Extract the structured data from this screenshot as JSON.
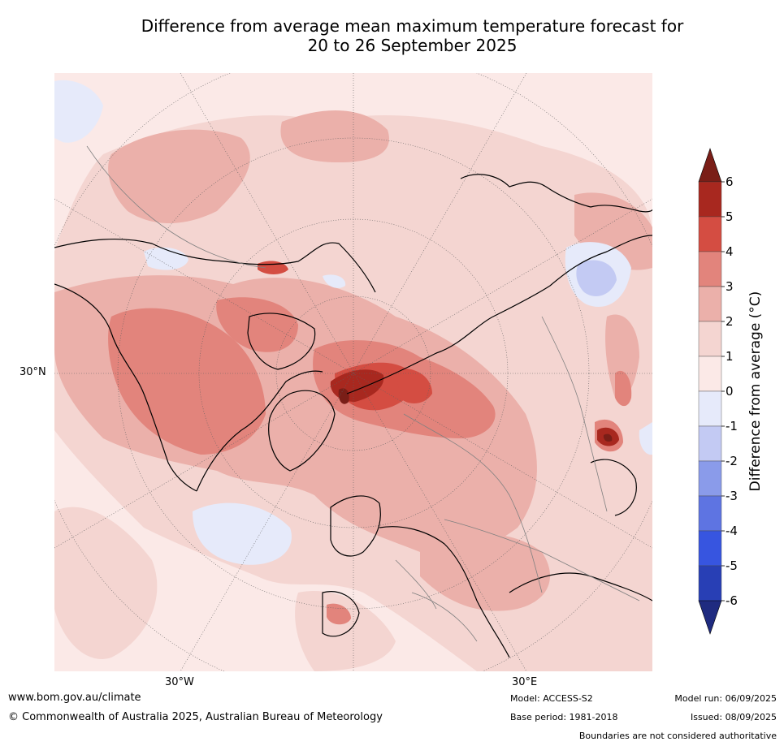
{
  "header": {
    "title_line1": "Difference from average mean maximum temperature forecast for",
    "title_line2": "20 to 26 September 2025"
  },
  "map": {
    "lat_label": "30°N",
    "lon_labels": [
      "30°W",
      "30°E"
    ],
    "colors": {
      "ocean_base": "#fbe9e7",
      "level_0_1": "#fbe9e7",
      "level_1_2": "#f4d5d1",
      "level_2_3": "#ebb0aa",
      "level_3_4": "#e2847c",
      "level_4_5": "#d44d42",
      "level_5_6": "#a8281f",
      "level_6_plus": "#7a1e17",
      "level_neg1_0": "#e6eafa",
      "level_neg2_neg1": "#c3caf3",
      "coast": "#000000",
      "borders": "#808080"
    }
  },
  "colorbar": {
    "label": "Difference from average (°C)",
    "ticks": [
      "6",
      "5",
      "4",
      "3",
      "2",
      "1",
      "0",
      "-1",
      "-2",
      "-3",
      "-4",
      "-5",
      "-6"
    ],
    "colors": [
      "#a8281f",
      "#d44d42",
      "#e2847c",
      "#ebb0aa",
      "#f4d5d1",
      "#fbe9e7",
      "#e6eafa",
      "#c3caf3",
      "#8a9bea",
      "#5e74e2",
      "#3755e0",
      "#283fb5"
    ],
    "top_arrow_color": "#7a1e17",
    "bottom_arrow_color": "#1f2b80"
  },
  "footer": {
    "website": "www.bom.gov.au/climate",
    "copyright": "© Commonwealth of Australia 2025, Australian Bureau of Meteorology",
    "model": "Model: ACCESS-S2",
    "base_period": "Base period: 1981-2018",
    "model_run": "Model run: 06/09/2025",
    "issued": "Issued: 08/09/2025",
    "disclaimer": "Boundaries are not considered authoritative"
  }
}
